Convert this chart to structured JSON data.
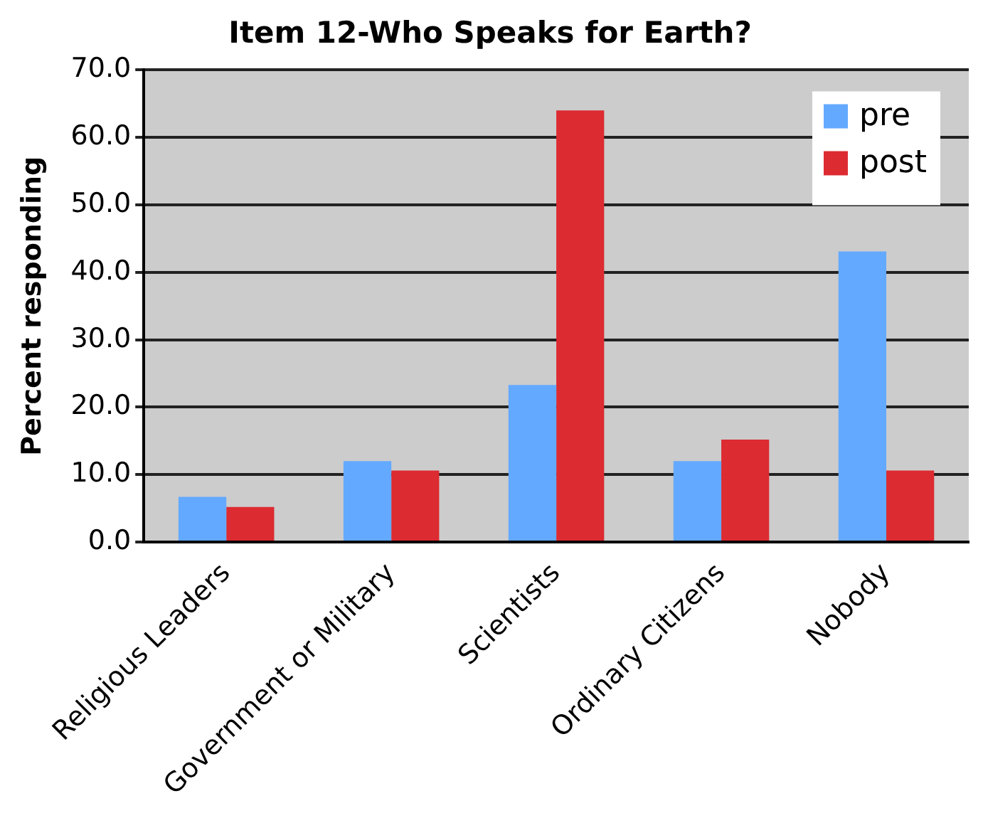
{
  "chart_data": {
    "type": "bar",
    "title": "Item 12-Who Speaks for Earth?",
    "ylabel": "Percent responding",
    "categories": [
      "Religious Leaders",
      "Government or Military",
      "Scientists",
      "Ordinary Citizens",
      "Nobody"
    ],
    "series": [
      {
        "name": "pre",
        "color": "#63a9ff",
        "values": [
          6.7,
          12.0,
          23.3,
          12.0,
          43.1
        ]
      },
      {
        "name": "post",
        "color": "#dc2b31",
        "values": [
          5.2,
          10.6,
          64.0,
          15.2,
          10.6
        ]
      }
    ],
    "ylim": [
      0,
      70
    ],
    "yticks": [
      {
        "value": 0,
        "label": "0.0"
      },
      {
        "value": 10,
        "label": "10.0"
      },
      {
        "value": 20,
        "label": "20.0"
      },
      {
        "value": 30,
        "label": "30.0"
      },
      {
        "value": 40,
        "label": "40.0"
      },
      {
        "value": 50,
        "label": "50.0"
      },
      {
        "value": 60,
        "label": "60.0"
      },
      {
        "value": 70,
        "label": "70.0"
      }
    ],
    "grid": "y",
    "legend": "top right"
  }
}
